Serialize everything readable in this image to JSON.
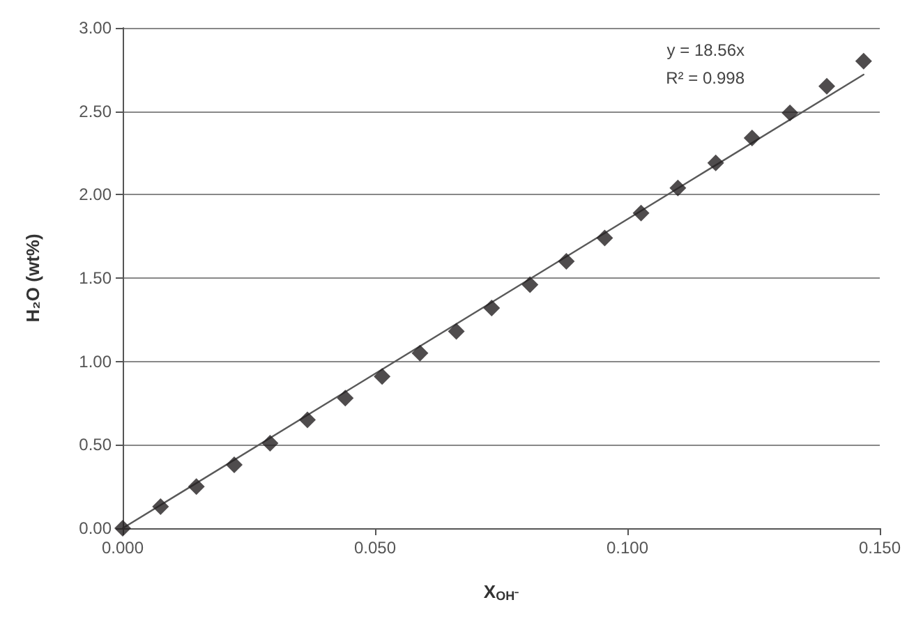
{
  "chart_data": {
    "type": "scatter",
    "xlabel": "X$_{OH⁻}$",
    "ylabel": "H₂O (wt%)",
    "annotations": [
      "y = 18.56x",
      "R² = 0.998"
    ],
    "xlim": [
      0,
      0.15
    ],
    "ylim": [
      0,
      3
    ],
    "xticks": [
      {
        "value": 0,
        "label": "0.000"
      },
      {
        "value": 0.05,
        "label": "0.050"
      },
      {
        "value": 0.1,
        "label": "0.100"
      },
      {
        "value": 0.15,
        "label": "0.150"
      }
    ],
    "yticks": [
      {
        "value": 0,
        "label": "0.00"
      },
      {
        "value": 0.5,
        "label": "0.50"
      },
      {
        "value": 1,
        "label": "1.00"
      },
      {
        "value": 1.5,
        "label": "1.50"
      },
      {
        "value": 2,
        "label": "2.00"
      },
      {
        "value": 2.5,
        "label": "2.50"
      },
      {
        "value": 3,
        "label": "3.00"
      }
    ],
    "grid": "y",
    "series": [
      {
        "color": "#231f20",
        "marker": "diamond",
        "x": [
          0,
          0.0075,
          0.0146,
          0.0221,
          0.0292,
          0.0366,
          0.0441,
          0.0514,
          0.0589,
          0.0661,
          0.0731,
          0.0807,
          0.0879,
          0.0955,
          0.1027,
          0.11,
          0.1175,
          0.1247,
          0.1322,
          0.1395,
          0.1468
        ],
        "values": [
          0,
          0.13,
          0.25,
          0.38,
          0.51,
          0.65,
          0.78,
          0.91,
          1.05,
          1.18,
          1.32,
          1.46,
          1.6,
          1.74,
          1.89,
          2.04,
          2.19,
          2.34,
          2.49,
          2.65,
          2.8
        ]
      },
      {
        "type": "line",
        "color": "#595959",
        "marker": "none",
        "line_style": "solid",
        "x": [
          0,
          0.1468
        ],
        "values": [
          0,
          2.72
        ]
      }
    ]
  }
}
